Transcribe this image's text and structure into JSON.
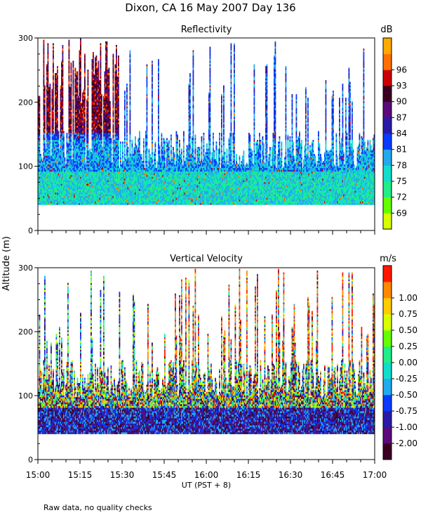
{
  "figure": {
    "title": "Dixon, CA 16 May 2007  Day 136",
    "y_label": "Altitude (m)",
    "x_label": "UT  (PST + 8)",
    "footnote": "Raw data, no quality checks"
  },
  "chart_data": [
    {
      "type": "heatmap",
      "title": "Reflectivity",
      "colorbar_title": "dB",
      "colorbar_ticks": [
        "69",
        "72",
        "75",
        "78",
        "81",
        "84",
        "87",
        "90",
        "93",
        "96"
      ],
      "colors": [
        "#d8ff00",
        "#66ff00",
        "#22ee88",
        "#11ddcc",
        "#22aaee",
        "#0a3aff",
        "#2a1aa8",
        "#5a0a7a",
        "#3a0022",
        "#cc0000",
        "#ff7000",
        "#ffaa00"
      ],
      "ylabel": "Altitude (m)",
      "ylim": [
        0,
        300
      ],
      "y_ticks": [
        "0",
        "100",
        "200",
        "300"
      ],
      "seed": 11
    },
    {
      "type": "heatmap",
      "title": "Vertical Velocity",
      "colorbar_title": "m/s",
      "colorbar_ticks": [
        "-2.00",
        "-1.00",
        "-0.75",
        "-0.50",
        "-0.25",
        "0.00",
        "0.25",
        "0.50",
        "0.75",
        "1.00"
      ],
      "colors": [
        "#3a0022",
        "#5a0a7a",
        "#2a1aa8",
        "#0a3aff",
        "#22aaee",
        "#11ddcc",
        "#22ee88",
        "#66ff00",
        "#d8ff00",
        "#ffcc00",
        "#ff8800",
        "#ff1800"
      ],
      "ylabel": "Altitude (m)",
      "ylim": [
        0,
        300
      ],
      "y_ticks": [
        "0",
        "100",
        "200",
        "300"
      ],
      "xlabel": "UT  (PST + 8)",
      "x_ticks": [
        "15:00",
        "15:15",
        "15:30",
        "15:45",
        "16:00",
        "16:15",
        "16:30",
        "16:45",
        "17:00"
      ],
      "seed": 29
    }
  ]
}
